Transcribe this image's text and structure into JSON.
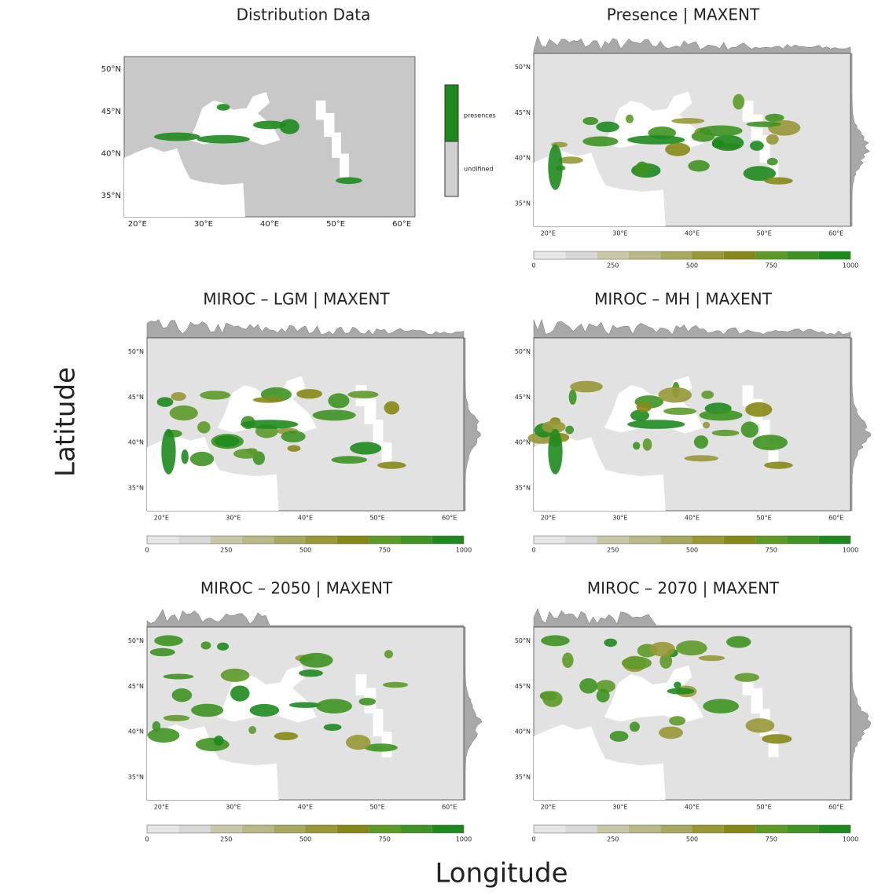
{
  "y_axis_label": "Latitude",
  "x_axis_label": "Longitude",
  "panels": [
    {
      "title": "Distribution Data",
      "legend": [
        "presences",
        "undifined"
      ]
    },
    {
      "title": "Presence | MAXENT"
    },
    {
      "title": "MIROC – LGM | MAXENT"
    },
    {
      "title": "MIROC – MH | MAXENT"
    },
    {
      "title": "MIROC – 2050 | MAXENT"
    },
    {
      "title": "MIROC – 2070 | MAXENT"
    }
  ],
  "lat_ticks": [
    "50°N",
    "45°N",
    "40°N",
    "35°N"
  ],
  "lon_ticks": [
    "20°E",
    "30°E",
    "40°E",
    "50°E",
    "60°E"
  ],
  "colorbar_ticks": [
    "0",
    "250",
    "500",
    "750",
    "1000"
  ]
}
